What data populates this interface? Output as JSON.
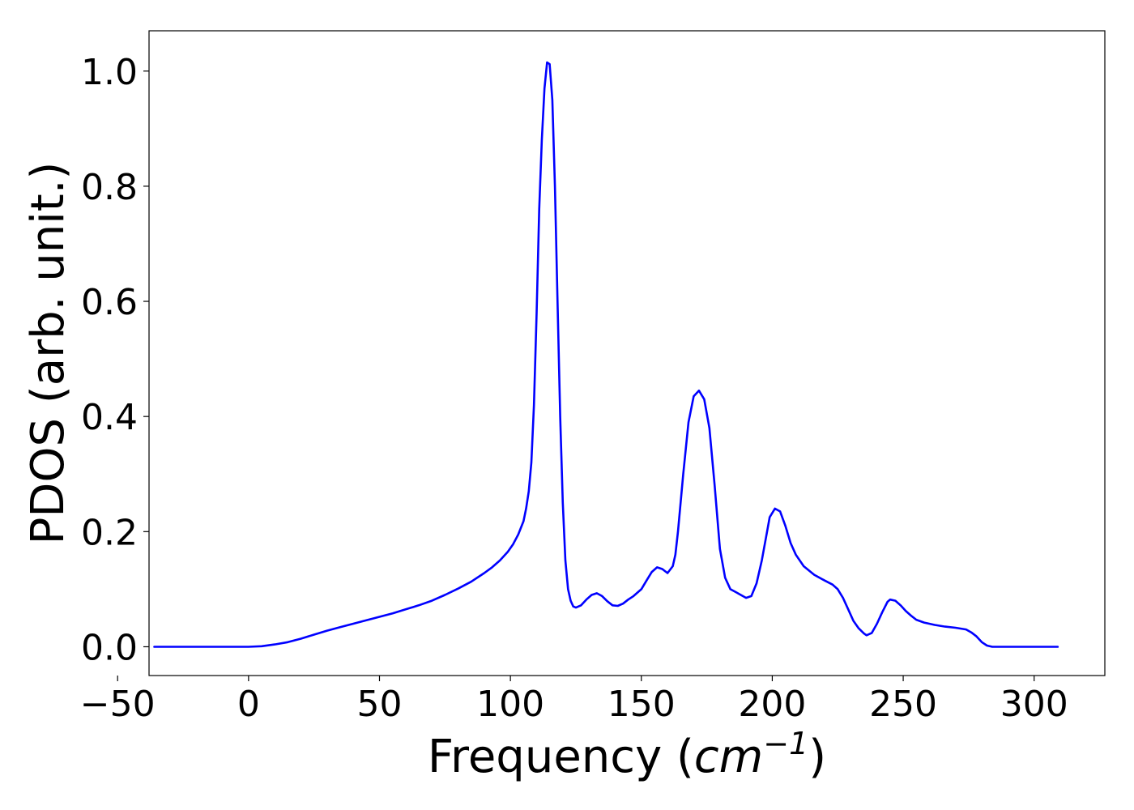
{
  "chart_data": {
    "type": "line",
    "title": "",
    "xlabel_text": "Frequency (",
    "xlabel_unit": "cm",
    "xlabel_exponent": "−1",
    "xlabel_close": ")",
    "ylabel": "PDOS (arb. unit.)",
    "xlim": [
      -38,
      327
    ],
    "ylim": [
      -0.05,
      1.07
    ],
    "grid": false,
    "legend": "none",
    "line_color": "#0000ff",
    "xticks": [
      {
        "value": -50,
        "label": "−50"
      },
      {
        "value": 0,
        "label": "0"
      },
      {
        "value": 50,
        "label": "50"
      },
      {
        "value": 100,
        "label": "100"
      },
      {
        "value": 150,
        "label": "150"
      },
      {
        "value": 200,
        "label": "200"
      },
      {
        "value": 250,
        "label": "250"
      },
      {
        "value": 300,
        "label": "300"
      }
    ],
    "yticks": [
      {
        "value": 0.0,
        "label": "0.0"
      },
      {
        "value": 0.2,
        "label": "0.2"
      },
      {
        "value": 0.4,
        "label": "0.4"
      },
      {
        "value": 0.6,
        "label": "0.6"
      },
      {
        "value": 0.8,
        "label": "0.8"
      },
      {
        "value": 1.0,
        "label": "1.0"
      }
    ],
    "series": [
      {
        "x": [
          -36,
          -30,
          -20,
          -10,
          0,
          5,
          10,
          15,
          20,
          25,
          30,
          35,
          40,
          45,
          50,
          55,
          60,
          65,
          70,
          75,
          80,
          85,
          90,
          93,
          96,
          99,
          101,
          103,
          105,
          106,
          107,
          108,
          109,
          110,
          111,
          112,
          113,
          114,
          115,
          116,
          117,
          118,
          119,
          120,
          121,
          122,
          123,
          124,
          125,
          126,
          127,
          129,
          131,
          133,
          135,
          137,
          139,
          141,
          143,
          145,
          147,
          150,
          152,
          154,
          156,
          158,
          160,
          162,
          163,
          164,
          166,
          168,
          170,
          172,
          174,
          176,
          178,
          180,
          182,
          184,
          186,
          188,
          190,
          192,
          194,
          196,
          198,
          199,
          201,
          203,
          205,
          207,
          209,
          212,
          216,
          220,
          223,
          225,
          227,
          229,
          231,
          233,
          235,
          236,
          238,
          240,
          242,
          244,
          245,
          247,
          249,
          251,
          253,
          255,
          258,
          262,
          266,
          270,
          274,
          276,
          278,
          280,
          282,
          284,
          286,
          290,
          300,
          309
        ],
        "y": [
          0.0,
          0.0,
          0.0,
          0.0,
          0.0,
          0.001,
          0.004,
          0.008,
          0.014,
          0.021,
          0.028,
          0.034,
          0.04,
          0.046,
          0.052,
          0.058,
          0.065,
          0.072,
          0.08,
          0.09,
          0.101,
          0.113,
          0.128,
          0.138,
          0.15,
          0.165,
          0.178,
          0.195,
          0.218,
          0.24,
          0.27,
          0.32,
          0.42,
          0.58,
          0.76,
          0.88,
          0.97,
          1.015,
          1.012,
          0.95,
          0.8,
          0.6,
          0.4,
          0.25,
          0.15,
          0.1,
          0.08,
          0.07,
          0.068,
          0.07,
          0.072,
          0.082,
          0.09,
          0.093,
          0.088,
          0.079,
          0.072,
          0.071,
          0.075,
          0.082,
          0.088,
          0.1,
          0.115,
          0.13,
          0.138,
          0.135,
          0.128,
          0.14,
          0.16,
          0.2,
          0.3,
          0.39,
          0.435,
          0.445,
          0.43,
          0.38,
          0.28,
          0.17,
          0.12,
          0.1,
          0.095,
          0.09,
          0.085,
          0.088,
          0.11,
          0.15,
          0.2,
          0.225,
          0.24,
          0.235,
          0.21,
          0.18,
          0.16,
          0.14,
          0.125,
          0.115,
          0.108,
          0.1,
          0.085,
          0.065,
          0.045,
          0.032,
          0.023,
          0.02,
          0.024,
          0.04,
          0.06,
          0.078,
          0.082,
          0.08,
          0.072,
          0.062,
          0.054,
          0.047,
          0.042,
          0.038,
          0.035,
          0.033,
          0.03,
          0.025,
          0.018,
          0.008,
          0.002,
          0.0,
          0.0,
          0.0,
          0.0,
          0.0
        ]
      }
    ]
  }
}
